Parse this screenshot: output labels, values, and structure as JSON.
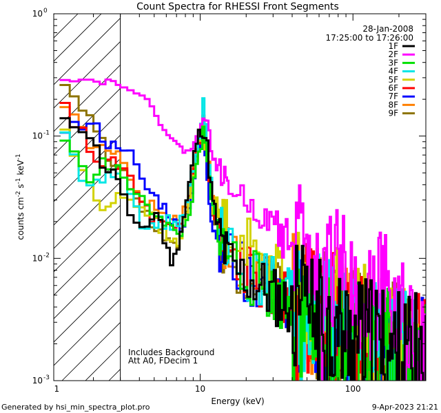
{
  "chart_data": {
    "type": "line",
    "title": "Count Spectra for RHESSI Front Segments",
    "xlabel": "Energy (keV)",
    "ylabel_parts": [
      "counts cm",
      "-2",
      " s",
      "-1",
      " keV",
      "-1"
    ],
    "xscale": "log",
    "yscale": "log",
    "xlim": [
      1.1,
      300
    ],
    "ylim": [
      0.001,
      1
    ],
    "x_ticks": [
      {
        "v": 10,
        "label": "10"
      },
      {
        "v": 100,
        "label": "100"
      }
    ],
    "y_ticks": [
      {
        "v": 1,
        "base": "10",
        "exp": "0"
      },
      {
        "v": 0.1,
        "base": "10",
        "exp": "-1"
      },
      {
        "v": 0.01,
        "base": "10",
        "exp": "-2"
      },
      {
        "v": 0.001,
        "base": "10",
        "exp": "-3"
      }
    ],
    "x_tick_label_1": "1",
    "hatched_region_keV": [
      1.1,
      3
    ],
    "date": "28-Jan-2008",
    "time_range": "17:25:00 to 17:26:00",
    "annotation_lines": [
      "Includes Background",
      "Att A0, FDecim 1"
    ],
    "footer_left": "Generated by hsi_min_spectra_plot.pro",
    "footer_right": "9-Apr-2023 21:21",
    "series": [
      {
        "name": "1F",
        "color": "#000000",
        "seed": 11,
        "x": [
          1.2,
          1.4,
          1.6,
          1.8,
          2.0,
          2.3,
          2.6,
          2.8,
          3.0,
          3.3,
          3.7,
          4.2,
          4.7,
          5.3,
          6.0,
          6.7,
          7.3,
          8.0,
          8.7,
          9.5,
          10.0,
          10.6,
          11.3,
          12.0,
          13.5,
          15,
          17,
          20,
          25,
          30,
          40,
          50,
          60,
          80,
          100,
          130,
          160,
          200,
          250,
          300
        ],
        "y": [
          0.12,
          0.13,
          0.12,
          0.12,
          0.09,
          0.06,
          0.05,
          0.048,
          0.045,
          0.025,
          0.017,
          0.018,
          0.02,
          0.025,
          0.012,
          0.009,
          0.015,
          0.025,
          0.05,
          0.09,
          0.11,
          0.12,
          0.07,
          0.03,
          0.015,
          0.01,
          0.008,
          0.007,
          0.006,
          0.005,
          0.004,
          0.0035,
          0.003,
          0.0025,
          0.0022,
          0.002,
          0.0018,
          0.0016,
          0.0015,
          0.0014
        ]
      },
      {
        "name": "2F",
        "color": "#ff00ff",
        "seed": 22,
        "x": [
          1.2,
          1.4,
          1.6,
          1.8,
          2.0,
          2.3,
          2.6,
          3.0,
          3.5,
          4.0,
          4.5,
          5.0,
          5.5,
          6.0,
          7.0,
          8.0,
          9.0,
          10.0,
          10.6,
          11.3,
          12.0,
          13,
          14,
          15,
          17,
          20,
          25,
          30,
          35,
          40,
          50,
          60,
          70,
          80,
          100,
          130,
          160,
          200,
          250,
          300
        ],
        "y": [
          0.3,
          0.3,
          0.29,
          0.29,
          0.28,
          0.28,
          0.28,
          0.27,
          0.25,
          0.22,
          0.19,
          0.16,
          0.13,
          0.11,
          0.085,
          0.075,
          0.08,
          0.12,
          0.16,
          0.12,
          0.07,
          0.055,
          0.048,
          0.042,
          0.036,
          0.03,
          0.022,
          0.019,
          0.016,
          0.013,
          0.01,
          0.008,
          0.0075,
          0.007,
          0.006,
          0.005,
          0.0045,
          0.004,
          0.003,
          0.0027
        ]
      },
      {
        "name": "3F",
        "color": "#00e000",
        "seed": 33,
        "x": [
          1.2,
          1.4,
          1.6,
          1.8,
          2.0,
          2.3,
          2.6,
          3.0,
          3.5,
          4.0,
          4.5,
          5.0,
          6.0,
          7.0,
          8.0,
          9.0,
          10.0,
          10.6,
          11.3,
          12.0,
          14,
          17,
          20,
          25,
          30,
          40,
          50,
          60,
          80,
          100,
          130,
          160,
          200,
          250,
          300
        ],
        "y": [
          0.12,
          0.08,
          0.06,
          0.045,
          0.05,
          0.06,
          0.055,
          0.05,
          0.04,
          0.03,
          0.026,
          0.025,
          0.02,
          0.015,
          0.018,
          0.035,
          0.08,
          0.1,
          0.05,
          0.025,
          0.013,
          0.009,
          0.008,
          0.006,
          0.005,
          0.004,
          0.0035,
          0.003,
          0.0025,
          0.0022,
          0.002,
          0.0018,
          0.0016,
          0.0014,
          0.0012
        ]
      },
      {
        "name": "4F",
        "color": "#00e6e6",
        "seed": 44,
        "x": [
          1.2,
          1.4,
          1.6,
          1.8,
          2.0,
          2.3,
          2.6,
          3.0,
          3.5,
          4.0,
          4.5,
          5.0,
          6.0,
          7.0,
          8.0,
          9.0,
          10.0,
          10.6,
          11.3,
          12.0,
          14,
          17,
          20,
          25,
          30,
          40,
          50,
          60,
          80,
          100,
          130,
          160,
          200,
          250,
          300
        ],
        "y": [
          0.13,
          0.09,
          0.055,
          0.04,
          0.04,
          0.04,
          0.05,
          0.045,
          0.035,
          0.02,
          0.018,
          0.02,
          0.02,
          0.018,
          0.025,
          0.05,
          0.12,
          0.18,
          0.07,
          0.03,
          0.015,
          0.01,
          0.008,
          0.007,
          0.006,
          0.005,
          0.004,
          0.0035,
          0.003,
          0.0025,
          0.0022,
          0.002,
          0.0018,
          0.0016,
          0.0014
        ]
      },
      {
        "name": "5F",
        "color": "#d2d200",
        "seed": 55,
        "x": [
          1.2,
          1.4,
          1.6,
          1.8,
          2.0,
          2.3,
          2.6,
          3.0,
          3.5,
          4.0,
          4.5,
          5.0,
          6.0,
          7.0,
          8.0,
          9.0,
          10.0,
          10.6,
          11.3,
          12.0,
          14,
          17,
          20,
          25,
          30,
          40,
          50,
          60,
          80,
          100,
          130,
          160,
          200,
          250,
          300
        ],
        "y": [
          0.13,
          0.09,
          0.06,
          0.045,
          0.032,
          0.025,
          0.03,
          0.035,
          0.03,
          0.028,
          0.025,
          0.02,
          0.015,
          0.013,
          0.02,
          0.045,
          0.1,
          0.12,
          0.06,
          0.03,
          0.02,
          0.016,
          0.013,
          0.01,
          0.008,
          0.006,
          0.005,
          0.0045,
          0.004,
          0.0035,
          0.003,
          0.0025,
          0.002,
          0.0018,
          0.0015
        ]
      },
      {
        "name": "6F",
        "color": "#ff0000",
        "seed": 66,
        "x": [
          1.2,
          1.4,
          1.6,
          1.8,
          2.0,
          2.3,
          2.6,
          3.0,
          3.5,
          4.0,
          4.5,
          5.0,
          6.0,
          7.0,
          8.0,
          9.0,
          10.0,
          10.6,
          11.3,
          12.0,
          14,
          17,
          20,
          25,
          30,
          40,
          50,
          60,
          80,
          100,
          130,
          160,
          200,
          250,
          300
        ],
        "y": [
          0.19,
          0.15,
          0.12,
          0.09,
          0.07,
          0.06,
          0.06,
          0.055,
          0.045,
          0.03,
          0.025,
          0.02,
          0.018,
          0.016,
          0.022,
          0.05,
          0.11,
          0.13,
          0.06,
          0.025,
          0.013,
          0.01,
          0.008,
          0.0065,
          0.0055,
          0.0045,
          0.004,
          0.0035,
          0.003,
          0.0025,
          0.0022,
          0.002,
          0.0018,
          0.0016,
          0.0014
        ]
      },
      {
        "name": "7F",
        "color": "#0000ff",
        "seed": 77,
        "x": [
          1.2,
          1.4,
          1.6,
          1.8,
          2.0,
          2.3,
          2.6,
          3.0,
          3.3,
          3.7,
          4.2,
          4.7,
          5.3,
          6.0,
          7.0,
          8.0,
          9.0,
          10.0,
          10.6,
          11.3,
          12.0,
          14,
          17,
          20,
          25,
          30,
          40,
          50,
          60,
          80,
          100,
          130,
          160,
          200,
          250,
          300
        ],
        "y": [
          0.12,
          0.12,
          0.12,
          0.12,
          0.12,
          0.1,
          0.08,
          0.09,
          0.08,
          0.06,
          0.04,
          0.035,
          0.03,
          0.025,
          0.018,
          0.02,
          0.04,
          0.09,
          0.1,
          0.04,
          0.02,
          0.012,
          0.009,
          0.007,
          0.006,
          0.005,
          0.004,
          0.0035,
          0.003,
          0.0025,
          0.0022,
          0.002,
          0.0018,
          0.0016,
          0.0015,
          0.0013
        ]
      },
      {
        "name": "8F",
        "color": "#ff8000",
        "seed": 88,
        "x": [
          1.2,
          1.4,
          1.6,
          1.8,
          2.0,
          2.3,
          2.6,
          3.0,
          3.5,
          4.0,
          4.5,
          5.0,
          6.0,
          7.0,
          8.0,
          9.0,
          10.0,
          10.6,
          11.3,
          12.0,
          14,
          17,
          20,
          25,
          30,
          40,
          50,
          60,
          80,
          100,
          130,
          160,
          200,
          250,
          300
        ],
        "y": [
          0.2,
          0.17,
          0.13,
          0.1,
          0.08,
          0.075,
          0.07,
          0.065,
          0.05,
          0.035,
          0.03,
          0.025,
          0.022,
          0.02,
          0.025,
          0.05,
          0.1,
          0.12,
          0.06,
          0.03,
          0.015,
          0.01,
          0.008,
          0.0065,
          0.0055,
          0.0045,
          0.004,
          0.0035,
          0.003,
          0.0025,
          0.0022,
          0.002,
          0.0018,
          0.0016,
          0.0014
        ]
      },
      {
        "name": "9F",
        "color": "#8c7300",
        "seed": 99,
        "x": [
          1.2,
          1.4,
          1.6,
          1.8,
          2.0,
          2.3,
          2.6,
          3.0,
          3.5,
          4.0,
          4.5,
          5.0,
          6.0,
          7.0,
          8.0,
          9.0,
          10.0,
          10.6,
          11.3,
          12.0,
          14,
          17,
          20,
          25,
          30,
          40,
          50,
          60,
          80,
          100,
          130,
          160,
          200,
          250,
          300
        ],
        "y": [
          0.28,
          0.25,
          0.2,
          0.17,
          0.13,
          0.09,
          0.06,
          0.05,
          0.04,
          0.028,
          0.022,
          0.018,
          0.013,
          0.012,
          0.02,
          0.045,
          0.09,
          0.11,
          0.05,
          0.025,
          0.013,
          0.009,
          0.008,
          0.007,
          0.006,
          0.005,
          0.004,
          0.0035,
          0.003,
          0.0025,
          0.0022,
          0.002,
          0.0018,
          0.0016,
          0.0014
        ]
      }
    ]
  }
}
